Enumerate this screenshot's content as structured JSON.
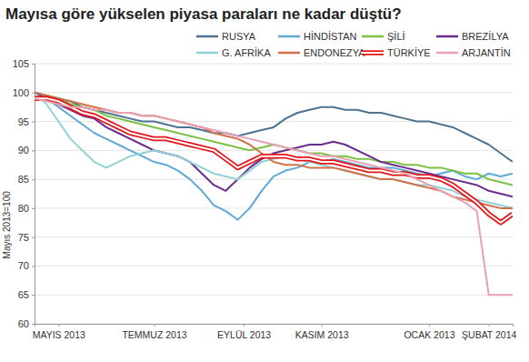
{
  "chart_data": {
    "type": "line",
    "title": "Mayısa göre yükselen piyasa paraları ne kadar düştü?",
    "ylabel": "Mayıs 2013=100",
    "x": [
      0,
      1,
      2,
      3,
      4,
      5,
      6,
      7,
      8,
      9,
      10,
      11,
      12,
      13,
      14,
      15,
      16,
      17,
      18,
      19,
      20,
      21,
      22,
      23,
      24,
      25,
      26,
      27,
      28,
      29,
      30,
      31,
      32,
      33,
      34,
      35,
      36,
      37,
      38,
      39,
      40
    ],
    "xlim": [
      0,
      40
    ],
    "xticks": [
      {
        "value": 2,
        "label": "MAYIS 2013"
      },
      {
        "value": 10,
        "label": "TEMMUZ 2013"
      },
      {
        "value": 17.5,
        "label": "EYLÜL 2013"
      },
      {
        "value": 24,
        "label": "KASIM 2013"
      },
      {
        "value": 33,
        "label": "OCAK 2013"
      },
      {
        "value": 38,
        "label": "ŞUBAT 2014"
      }
    ],
    "ylim": [
      60,
      105
    ],
    "yticks": [
      60,
      65,
      70,
      75,
      80,
      85,
      90,
      95,
      100,
      105
    ],
    "grid": true,
    "legend": "top",
    "series": [
      {
        "name": "RUSYA",
        "color": "#4d7390",
        "line_style": "solid",
        "values": [
          100,
          99.5,
          99,
          98.5,
          97.5,
          97,
          96.5,
          96,
          95.5,
          95,
          95,
          94.5,
          94,
          94,
          93.5,
          93,
          93,
          92.5,
          93,
          93.5,
          94,
          95.5,
          96.5,
          97,
          97.5,
          97.5,
          97,
          97,
          96.5,
          96.5,
          96,
          95.5,
          95,
          95,
          94.5,
          94,
          93,
          92,
          91,
          89.5,
          88
        ]
      },
      {
        "name": "HİNDİSTAN",
        "color": "#5fa9d6",
        "line_style": "solid",
        "values": [
          100,
          99,
          97.5,
          96,
          94.5,
          93,
          92,
          91,
          90,
          89,
          88,
          87.5,
          86.5,
          85,
          83,
          80.5,
          79.5,
          78,
          80,
          83,
          85.5,
          86.5,
          87,
          88,
          88,
          88.5,
          88,
          87.5,
          87,
          87,
          87,
          86.5,
          86,
          85.5,
          86,
          86.5,
          85.5,
          85,
          86,
          85.5,
          86
        ]
      },
      {
        "name": "ŞİLİ",
        "color": "#7cc242",
        "line_style": "solid",
        "values": [
          100,
          99.5,
          99,
          98,
          97.5,
          97,
          96,
          95.5,
          95,
          94.5,
          94,
          93.5,
          93,
          92.5,
          92,
          91.5,
          91,
          90.5,
          90,
          90.5,
          91,
          90.5,
          90,
          89.5,
          89.5,
          89,
          89,
          88.5,
          88.5,
          88,
          88,
          87.5,
          87.5,
          87,
          87,
          86.5,
          86,
          86,
          85,
          84.5,
          84
        ]
      },
      {
        "name": "BREZİLYA",
        "color": "#6a2c8e",
        "line_style": "solid",
        "values": [
          100,
          99,
          98,
          97,
          96,
          95.5,
          94,
          93,
          92,
          91,
          90,
          89.5,
          89,
          88,
          86,
          84,
          83,
          85,
          87,
          88.5,
          89.5,
          90,
          90.5,
          91,
          91,
          91.5,
          91,
          90,
          89,
          88,
          87.5,
          87,
          86.5,
          86,
          85.5,
          85,
          84.5,
          84,
          83,
          82.5,
          82
        ]
      },
      {
        "name": "G. AFRİKA",
        "color": "#8fd3d8",
        "line_style": "solid",
        "values": [
          100,
          98,
          95,
          92,
          90,
          88,
          87,
          88,
          89,
          89.5,
          90,
          89.5,
          89,
          88,
          87,
          86,
          85.5,
          85,
          86.5,
          88,
          88.5,
          89,
          88.5,
          88,
          87.5,
          87,
          86.5,
          86,
          85.5,
          85,
          85,
          84.5,
          84,
          84,
          83.5,
          83,
          82,
          81.5,
          81,
          80.5,
          80
        ]
      },
      {
        "name": "ENDONEZYA",
        "color": "#d0714a",
        "line_style": "solid",
        "values": [
          100,
          99.5,
          99,
          98.5,
          98,
          97.5,
          97,
          96.5,
          96.5,
          96,
          96,
          95.5,
          95,
          94.5,
          94,
          93,
          92.5,
          92,
          91,
          89.5,
          88,
          87.5,
          87.5,
          87,
          87,
          87,
          86.5,
          86,
          85.5,
          85,
          85,
          84.5,
          84,
          83.5,
          83,
          82,
          81.5,
          81,
          80.5,
          80,
          80
        ]
      },
      {
        "name": "TÜRKİYE",
        "color": "#e3161b",
        "line_style": "outlined",
        "values": [
          99,
          99,
          98.5,
          97.5,
          96.5,
          96,
          95,
          94,
          93,
          92.5,
          92,
          92,
          91.5,
          91,
          90.5,
          90,
          88.5,
          87,
          88,
          89,
          89,
          89,
          88.5,
          88.5,
          88,
          88,
          87.5,
          87,
          86.5,
          86.5,
          86,
          86,
          85.5,
          85.5,
          85,
          84,
          82.5,
          81,
          79,
          77.5,
          79
        ]
      },
      {
        "name": "ARJANTİN",
        "color": "#e8a0b4",
        "line_style": "solid",
        "values": [
          99,
          98.5,
          98,
          97.5,
          97.5,
          97,
          97,
          96.5,
          96.5,
          96,
          96,
          95.5,
          95,
          94.5,
          94,
          93.5,
          93,
          92.5,
          92,
          91.5,
          91,
          90.5,
          90,
          89.5,
          89,
          89,
          88.5,
          88,
          87.5,
          87,
          86.5,
          86,
          85,
          84,
          83,
          82,
          81,
          79.5,
          65,
          65,
          65
        ]
      }
    ]
  }
}
